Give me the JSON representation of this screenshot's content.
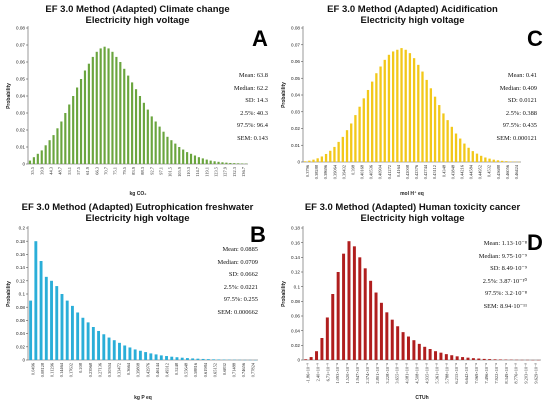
{
  "chart_data": [
    {
      "id": "A",
      "type": "bar",
      "letter": "A",
      "title_lines": [
        "EF 3.0 Method (Adapted) Climate change",
        "Electricity high voltage"
      ],
      "ylabel": "Probability",
      "xlabel": "kg CO₂",
      "color": "#6aa53e",
      "ylim": [
        0,
        0.08
      ],
      "yticks": [
        "0",
        "0.01",
        "0.02",
        "0.03",
        "0.04",
        "0.05",
        "0.06",
        "0.07",
        "0.08"
      ],
      "xticks": [
        "35.5",
        "39.9",
        "44.3",
        "48.7",
        "53.1",
        "57.5",
        "61.9",
        "66.3",
        "70.7",
        "75.1",
        "79.5",
        "83.9",
        "88.3",
        "92.7",
        "97.1",
        "101.5",
        "105.9",
        "110.3",
        "114.7",
        "119.1",
        "123.5",
        "127.9",
        "132.3",
        "136.7"
      ],
      "values": [
        0.002,
        0.004,
        0.006,
        0.008,
        0.011,
        0.014,
        0.017,
        0.021,
        0.025,
        0.03,
        0.035,
        0.04,
        0.045,
        0.05,
        0.055,
        0.059,
        0.063,
        0.066,
        0.068,
        0.069,
        0.068,
        0.066,
        0.063,
        0.06,
        0.056,
        0.052,
        0.048,
        0.044,
        0.04,
        0.036,
        0.032,
        0.028,
        0.025,
        0.022,
        0.019,
        0.016,
        0.014,
        0.012,
        0.01,
        0.0085,
        0.007,
        0.006,
        0.005,
        0.004,
        0.0033,
        0.0026,
        0.002,
        0.0016,
        0.0013,
        0.001,
        0.0008,
        0.0006,
        0.0005,
        0.0004,
        0.0003,
        0.0002
      ],
      "stats": [
        "Mean: 63.8",
        "Median: 62.2",
        "SD: 14.3",
        "2.5%: 40.3",
        "97.5%: 96.4",
        "SEM: 0.143"
      ]
    },
    {
      "id": "C",
      "type": "bar",
      "letter": "C",
      "title_lines": [
        "EF 3.0 Method (Adapted) Acidification",
        "Electricity high voltage"
      ],
      "ylabel": "Probability",
      "xlabel": "mol H⁺ eq",
      "color": "#f2c81a",
      "ylim": [
        0,
        0.08
      ],
      "yticks": [
        "0",
        "0.01",
        "0.02",
        "0.03",
        "0.04",
        "0.05",
        "0.06",
        "0.07",
        "0.08"
      ],
      "xticks": [
        "0.3796",
        "0.38288",
        "0.38696",
        "0.39064",
        "0.39432",
        "0.398",
        "0.40168",
        "0.40536",
        "0.40904",
        "0.41272",
        "0.4164",
        "0.42008",
        "0.42376",
        "0.42744",
        "0.43112",
        "0.4348",
        "0.43848",
        "0.44216",
        "0.44584",
        "0.44952",
        "0.4532",
        "0.45688",
        "0.46056",
        "0.46424"
      ],
      "values": [
        0.0004,
        0.0008,
        0.0014,
        0.0022,
        0.0033,
        0.0048,
        0.0067,
        0.009,
        0.012,
        0.015,
        0.019,
        0.023,
        0.028,
        0.033,
        0.038,
        0.043,
        0.048,
        0.053,
        0.057,
        0.061,
        0.064,
        0.066,
        0.067,
        0.068,
        0.067,
        0.065,
        0.062,
        0.058,
        0.054,
        0.049,
        0.044,
        0.039,
        0.034,
        0.029,
        0.025,
        0.021,
        0.017,
        0.014,
        0.011,
        0.0085,
        0.0065,
        0.005,
        0.0037,
        0.0027,
        0.002,
        0.0014,
        0.001,
        0.0007,
        0.0005,
        0.0003,
        0.0002,
        0.0001
      ],
      "stats": [
        "Mean: 0.41",
        "Median: 0.409",
        "SD: 0.0121",
        "2.5%: 0.388",
        "97.5%: 0.435",
        "SEM: 0.000121"
      ]
    },
    {
      "id": "B",
      "type": "bar",
      "letter": "B",
      "title_lines": [
        "EF 3.0 Method (Adapted) Eutrophication freshwater",
        "Electricity high voltage"
      ],
      "ylabel": "Probability",
      "xlabel": "kg P eq",
      "color": "#2aaed8",
      "ylim": [
        0,
        0.2
      ],
      "yticks": [
        "0",
        "0.02",
        "0.04",
        "0.06",
        "0.08",
        "0.1",
        "0.12",
        "0.14",
        "0.16",
        "0.18",
        "0.2"
      ],
      "xticks": [
        "0.0496",
        "0.08128",
        "0.11296",
        "0.14464",
        "0.17632",
        "0.208",
        "0.23968",
        "0.27136",
        "0.30304",
        "0.33472",
        "0.3664",
        "0.39808",
        "0.42976",
        "0.46144",
        "0.49312",
        "0.5248",
        "0.55648",
        "0.58816",
        "0.61984",
        "0.65152",
        "0.6832",
        "0.71488",
        "0.74656",
        "0.77824"
      ],
      "values": [
        0.09,
        0.18,
        0.15,
        0.126,
        0.12,
        0.112,
        0.1,
        0.09,
        0.082,
        0.072,
        0.064,
        0.057,
        0.05,
        0.044,
        0.039,
        0.034,
        0.03,
        0.026,
        0.022,
        0.019,
        0.016,
        0.014,
        0.012,
        0.01,
        0.0085,
        0.007,
        0.006,
        0.005,
        0.0042,
        0.0035,
        0.0029,
        0.0024,
        0.002,
        0.0016,
        0.0013,
        0.001,
        0.0008,
        0.0006,
        0.0005,
        0.0004,
        0.0003,
        0.0002,
        0.0002,
        0.0001
      ],
      "stats": [
        "Mean: 0.0885",
        "Median: 0.0709",
        "SD: 0.0662",
        "2.5%: 0.0221",
        "97.5%: 0.255",
        "SEM: 0.000662"
      ]
    },
    {
      "id": "D",
      "type": "bar",
      "letter": "D",
      "title_lines": [
        "EF 3.0 Method (Adapted) Human toxicity cancer",
        "Electricity high voltage"
      ],
      "ylabel": "Probability",
      "xlabel": "CTUh",
      "color": "#b01e1e",
      "ylim": [
        0,
        0.18
      ],
      "yticks": [
        "0",
        "0.02",
        "0.04",
        "0.06",
        "0.08",
        "0.1",
        "0.12",
        "0.14",
        "0.16",
        "0.18"
      ],
      "xticks": [
        "-1.86×10⁻⁹",
        "2.40×10⁻⁹",
        "6.73×10⁻⁹",
        "1.093×10⁻⁸",
        "1.520×10⁻⁸",
        "1.947×10⁻⁸",
        "2.374×10⁻⁸",
        "2.801×10⁻⁸",
        "3.228×10⁻⁸",
        "3.655×10⁻⁸",
        "4.081×10⁻⁸",
        "4.508×10⁻⁸",
        "4.935×10⁻⁸",
        "5.361×10⁻⁸",
        "5.788×10⁻⁸",
        "6.215×10⁻⁸",
        "6.642×10⁻⁸",
        "7.069×10⁻⁸",
        "7.496×10⁻⁸",
        "7.922×10⁻⁸",
        "8.349×10⁻⁸",
        "8.776×10⁻⁸",
        "9.203×10⁻⁸",
        "9.629×10⁻⁸"
      ],
      "values": [
        0.001,
        0.004,
        0.012,
        0.03,
        0.058,
        0.09,
        0.12,
        0.145,
        0.162,
        0.155,
        0.14,
        0.125,
        0.108,
        0.092,
        0.078,
        0.065,
        0.055,
        0.046,
        0.038,
        0.032,
        0.027,
        0.022,
        0.018,
        0.015,
        0.012,
        0.01,
        0.008,
        0.0065,
        0.005,
        0.004,
        0.0032,
        0.0025,
        0.002,
        0.0015,
        0.0012,
        0.0009,
        0.0007,
        0.0005,
        0.0004,
        0.0003,
        0.0002,
        0.0002,
        0.0001,
        0.0001
      ],
      "stats": [
        "Mean: 1.13·10⁻⁸",
        "Median: 9.75·10⁻⁹",
        "SD: 8.49·10⁻⁹",
        "2.5%: 3.87·10⁻¹⁰",
        "97.5%: 3.2·10⁻⁸",
        "SEM: 8.94·10⁻¹¹"
      ]
    }
  ]
}
